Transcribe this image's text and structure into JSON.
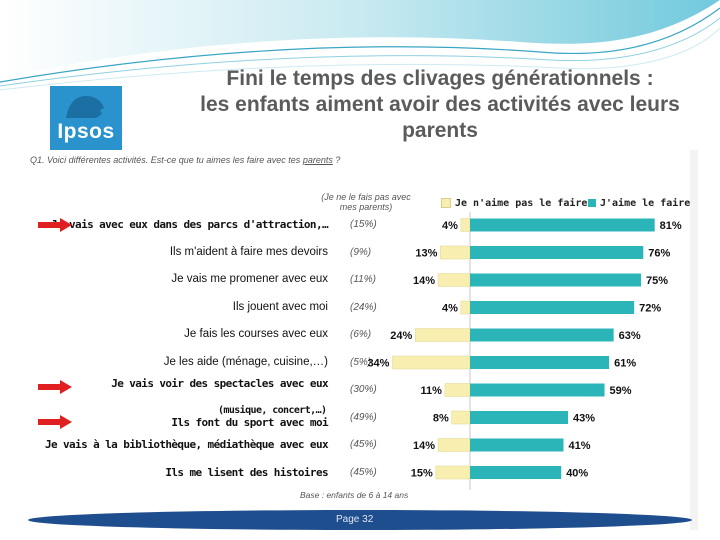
{
  "header": {
    "title_line1": "Fini le temps des clivages générationnels :",
    "title_line2": "les enfants aiment avoir des activités avec leurs",
    "title_line3": "parents",
    "logo_text": "Ipsos"
  },
  "question": {
    "prefix": "Q1. Voici différentes activités. Est-ce que tu aimes les faire avec tes",
    "underlined": "parents",
    "suffix": "?"
  },
  "legend_note": "(Je ne le fais pas avec mes parents)",
  "base_note": "Base : enfants de 6 à 14 ans",
  "footer": {
    "page_label": "Page 32"
  },
  "colors": {
    "like": "#2bb5b8",
    "dislike": "#f7eeb0",
    "logo": "#2a93cd",
    "footer": "#1f4e8f",
    "arrow": "#e02020"
  },
  "chart_data": {
    "type": "bar",
    "orientation": "horizontal-diverging",
    "series": [
      {
        "name": "Je n'aime pas le faire",
        "values": [
          4,
          13,
          14,
          4,
          24,
          34,
          11,
          8,
          14,
          15
        ]
      },
      {
        "name": "J'aime le faire",
        "values": [
          81,
          76,
          75,
          72,
          63,
          61,
          59,
          43,
          41,
          40
        ]
      }
    ],
    "categories": [
      "Je vais avec eux dans des parcs d'attraction,…",
      "Ils m'aident à faire mes devoirs",
      "Je vais me promener avec eux",
      "Ils jouent avec moi",
      "Je fais les courses avec eux",
      "Je les aide (ménage, cuisine,…)",
      "Je vais voir des spectacles avec eux",
      "Ils font du sport avec moi",
      "Je vais à la bibliothèque, médiathèque avec eux",
      "Ils me lisent des histoires"
    ],
    "category_subline": "(musique, concert,…)",
    "not_done_with_parents": [
      "(15%)",
      "(9%)",
      "(11%)",
      "(24%)",
      "(6%)",
      "(5%)",
      "(30%)",
      "(49%)",
      "(45%)",
      "(45%)"
    ],
    "value_labels_dislike": [
      "4%",
      "13%",
      "14%",
      "4%",
      "24%",
      "34%",
      "11%",
      "8%",
      "14%",
      "15%"
    ],
    "value_labels_like": [
      "81%",
      "76%",
      "75%",
      "72%",
      "63%",
      "61%",
      "59%",
      "43%",
      "41%",
      "40%"
    ],
    "highlighted_categories": [
      "Je vais avec eux dans des parcs d'attraction,…",
      "Je vais voir des spectacles avec eux",
      "Ils font du sport avec moi"
    ],
    "xlabel": "",
    "ylabel": ""
  }
}
